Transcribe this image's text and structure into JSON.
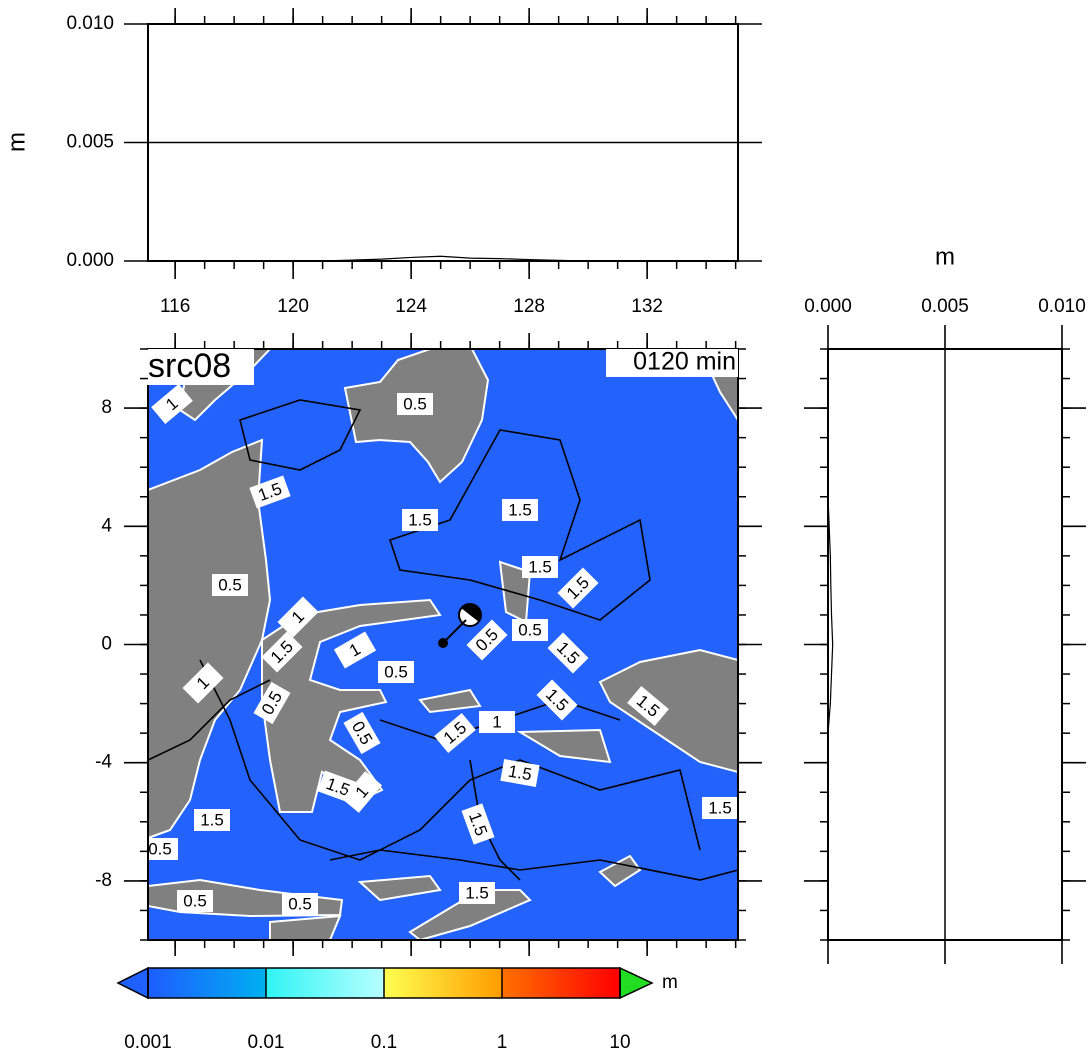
{
  "top_panel": {
    "ylabel": "m",
    "xlim": [
      115.08,
      135.08
    ],
    "ylim": [
      0,
      0.01
    ],
    "yticks": [
      {
        "value": 0,
        "label": "0.000"
      },
      {
        "value": 0.005,
        "label": "0.005"
      },
      {
        "value": 0.01,
        "label": "0.010"
      }
    ],
    "xticks": [
      116,
      120,
      124,
      128,
      132
    ],
    "profile": {
      "x": [
        121,
        122,
        123,
        124,
        125,
        126,
        127,
        128,
        129,
        130
      ],
      "values": [
        0,
        4e-05,
        8e-05,
        0.00015,
        0.0002,
        0.00012,
        0.0001,
        6e-05,
        3e-05,
        0
      ]
    }
  },
  "map": {
    "title": "src08",
    "time_label": "0120 min",
    "ylim": [
      -10,
      10
    ],
    "yticks": [
      -8,
      -4,
      0,
      4,
      8
    ],
    "contour_labels": [
      "1",
      "0.5",
      "1.5",
      "1.5",
      "1.5",
      "0.5",
      "1.5",
      "1.5",
      "1",
      "1.5",
      "0.5",
      "0.5",
      "1",
      "1.5",
      "0.5",
      "1",
      "0.5",
      "0.5",
      "1.5",
      "1.5",
      "1.5",
      "1",
      "1.5",
      "1",
      "1.5",
      "1.5",
      "1.5",
      "1.5",
      "0.5",
      "0.5",
      "0.5",
      "1.5"
    ]
  },
  "side_panel": {
    "xlabel": "m",
    "xlim": [
      0,
      0.01
    ],
    "xticks": [
      {
        "value": 0,
        "label": "0.000"
      },
      {
        "value": 0.005,
        "label": "0.005"
      },
      {
        "value": 0.01,
        "label": "0.010"
      }
    ],
    "profile": {
      "y": [
        5,
        4,
        3,
        2,
        1,
        0,
        -1,
        -2,
        -3
      ],
      "values": [
        0,
        5e-05,
        0.0001,
        0.00012,
        0.00015,
        0.0002,
        0.00015,
        0.0001,
        0
      ]
    }
  },
  "colorbar": {
    "unit": "m",
    "log": true,
    "ticks": [
      0.001,
      0.01,
      0.1,
      1,
      10
    ],
    "colors": [
      [
        "#1e5cff",
        "#00b0f0"
      ],
      [
        "#30f4f4",
        "#b8ffff"
      ],
      [
        "#ffff50",
        "#ff9c00"
      ],
      [
        "#ff7000",
        "#ff0000"
      ]
    ],
    "under_color": "#2060ff",
    "over_color": "#22dd22"
  }
}
